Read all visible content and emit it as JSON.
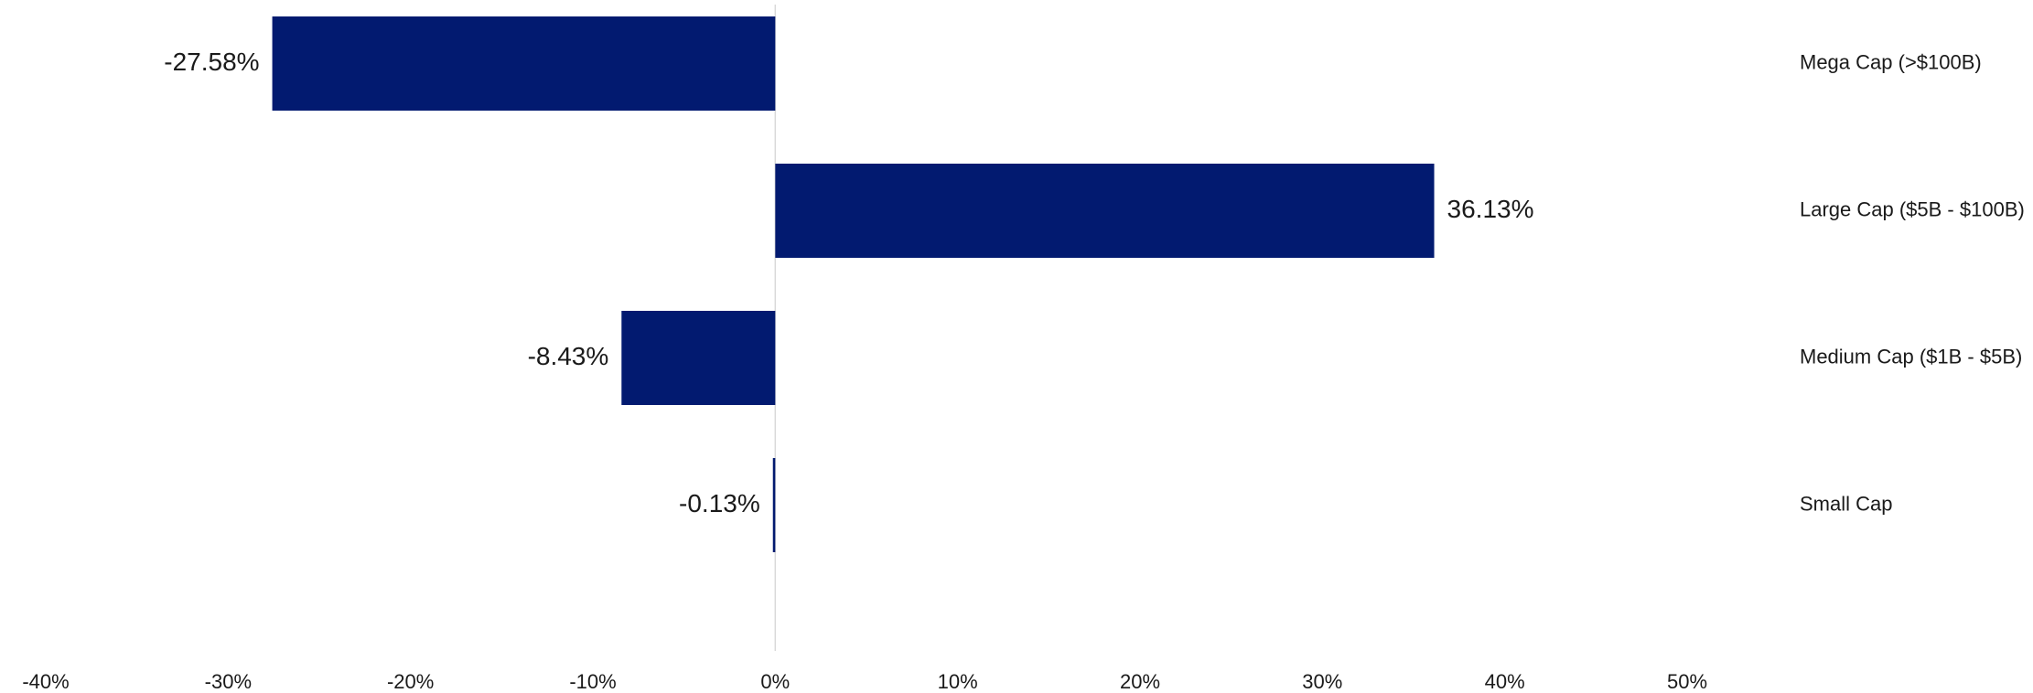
{
  "chart_data": {
    "type": "bar",
    "orientation": "horizontal",
    "categories": [
      "Mega Cap (>$100B)",
      "Large Cap ($5B - $100B)",
      "Medium Cap ($1B - $5B)",
      "Small Cap"
    ],
    "values": [
      -27.58,
      36.13,
      -8.43,
      -0.13
    ],
    "value_labels": [
      "-27.58%",
      "36.13%",
      "-8.43%",
      "-0.13%"
    ],
    "xlim": [
      -40,
      50
    ],
    "x_ticks": [
      -40,
      -30,
      -20,
      -10,
      0,
      10,
      20,
      30,
      40,
      50
    ],
    "x_tick_labels": [
      "-40%",
      "-30%",
      "-20%",
      "-10%",
      "0%",
      "10%",
      "20%",
      "30%",
      "40%",
      "50%"
    ],
    "title": "",
    "xlabel": "",
    "ylabel": "",
    "grid": false,
    "legend": "none",
    "category_label_position": "right",
    "colors": {
      "bar": "#021a70",
      "zero_line": "#d9d9d9",
      "text": "#1a1a1a"
    }
  }
}
